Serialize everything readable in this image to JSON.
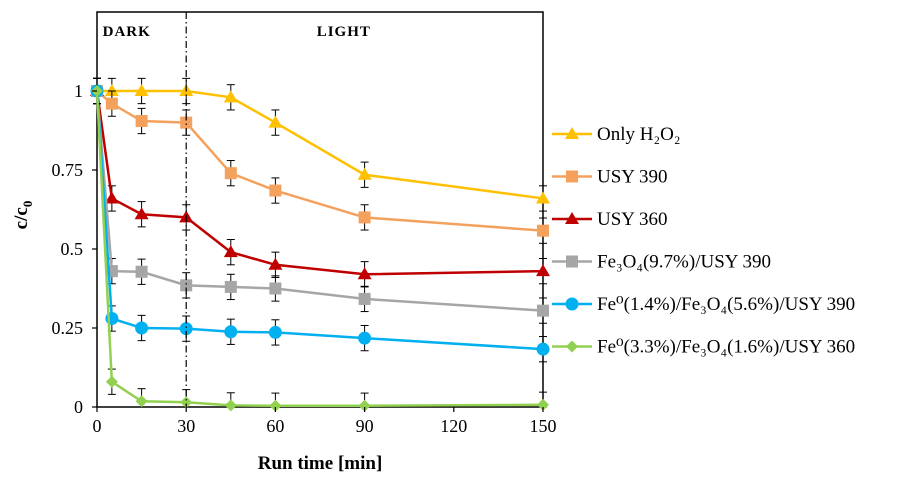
{
  "chart_data": {
    "type": "line",
    "xlabel": "Run time [min]",
    "ylabel_main": "c/c",
    "ylabel_sub": "0",
    "x": [
      0,
      5,
      15,
      30,
      45,
      60,
      90,
      150
    ],
    "xlim": [
      0,
      150
    ],
    "ylim": [
      0,
      1.25
    ],
    "xticks": [
      0,
      30,
      60,
      90,
      120,
      150
    ],
    "yticks": [
      0,
      0.25,
      0.5,
      0.75,
      1
    ],
    "xtick_labels": [
      "0",
      "30",
      "60",
      "90",
      "120",
      "150"
    ],
    "ytick_labels": [
      "0",
      "0.25",
      "0.5",
      "0.75",
      "1"
    ],
    "divider_x": 30,
    "regions": [
      {
        "label": "DARK",
        "x": 10
      },
      {
        "label": "LIGHT",
        "x": 83
      }
    ],
    "legend_placement": "right",
    "grid": false,
    "error_bar": 0.04,
    "series": [
      {
        "name": "Only H₂O₂",
        "color": "#FFC000",
        "marker": "triangle",
        "values": [
          1.0,
          1.0,
          1.0,
          1.0,
          0.98,
          0.9,
          0.735,
          0.66
        ]
      },
      {
        "name": "USY 390",
        "color": "#F4A15D",
        "marker": "square",
        "values": [
          1.0,
          0.96,
          0.905,
          0.9,
          0.74,
          0.685,
          0.6,
          0.558
        ]
      },
      {
        "name": "USY 360",
        "color": "#C00000",
        "marker": "triangle",
        "values": [
          1.0,
          0.66,
          0.61,
          0.6,
          0.49,
          0.45,
          0.42,
          0.43
        ]
      },
      {
        "name": "Fe₃O₄(9.7%)/USY 390",
        "color": "#A6A6A6",
        "marker": "square",
        "values": [
          1.0,
          0.43,
          0.428,
          0.385,
          0.38,
          0.375,
          0.342,
          0.305
        ]
      },
      {
        "name": "Fe⁰(1.4%)/Fe₃O₄(5.6%)/USY 390",
        "color": "#00B0F0",
        "marker": "circle",
        "values": [
          1.0,
          0.28,
          0.25,
          0.248,
          0.238,
          0.236,
          0.218,
          0.183
        ]
      },
      {
        "name": "Fe⁰(3.3%)/Fe₃O₄(1.6%)/USY 360",
        "color": "#92D050",
        "marker": "diamond",
        "values": [
          1.0,
          0.08,
          0.018,
          0.015,
          0.005,
          0.004,
          0.004,
          0.007
        ]
      }
    ]
  }
}
